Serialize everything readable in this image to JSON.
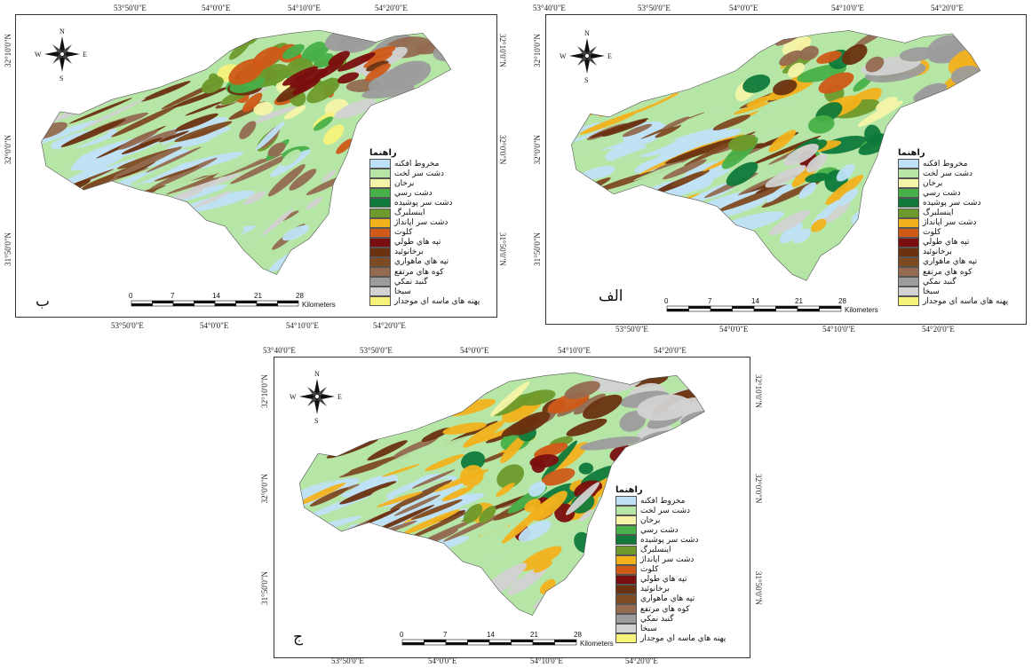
{
  "legend_title": "راهنما",
  "legend_items": [
    {
      "label": "مخروط افکنه",
      "color": "#bfe1f5"
    },
    {
      "label": "دشت سر لخت",
      "color": "#b6e6a6"
    },
    {
      "label": "برخان",
      "color": "#f6f4a8"
    },
    {
      "label": "دشت رسي",
      "color": "#48b048"
    },
    {
      "label": "دشت سر پوشيده",
      "color": "#0f7a3a"
    },
    {
      "label": "اينسلبرگ",
      "color": "#6e9a2c"
    },
    {
      "label": "دشت سر اپانداژ",
      "color": "#f2b21c"
    },
    {
      "label": "کلوت",
      "color": "#cf5a18"
    },
    {
      "label": "تپه هاي طولي",
      "color": "#7a0e0e"
    },
    {
      "label": "برخانوئيد",
      "color": "#6a3210"
    },
    {
      "label": "تپه هاي ماهواري",
      "color": "#7e4a22"
    },
    {
      "label": "کوه هاي مرتفع",
      "color": "#946a50"
    },
    {
      "label": "گنبد نمکي",
      "color": "#9c9c9c"
    },
    {
      "label": "سبخا",
      "color": "#d2d2d2"
    },
    {
      "label": "پهنه هاي ماسه اي موجدار",
      "color": "#f7f27a"
    }
  ],
  "scale": {
    "ticks": [
      "0",
      "7",
      "14",
      "21",
      "28"
    ],
    "unit": "Kilometers"
  },
  "compass": {
    "n": "N",
    "s": "S",
    "e": "E",
    "w": "W"
  },
  "top_coords": [
    "53°40'0\"E",
    "53°50'0\"E",
    "54°0'0\"E",
    "54°10'0\"E",
    "54°20'0\"E"
  ],
  "bottom_coords": [
    "53°50'0\"E",
    "54°0'0\"E",
    "54°10'0\"E",
    "54°20'0\"E"
  ],
  "lat_coords": [
    "32°10'0\"N",
    "32°0'0\"N",
    "31°50'0\"N"
  ],
  "panels": [
    {
      "id": "b",
      "letter": "ب"
    },
    {
      "id": "a",
      "letter": "الف"
    },
    {
      "id": "c",
      "letter": "ج"
    }
  ]
}
